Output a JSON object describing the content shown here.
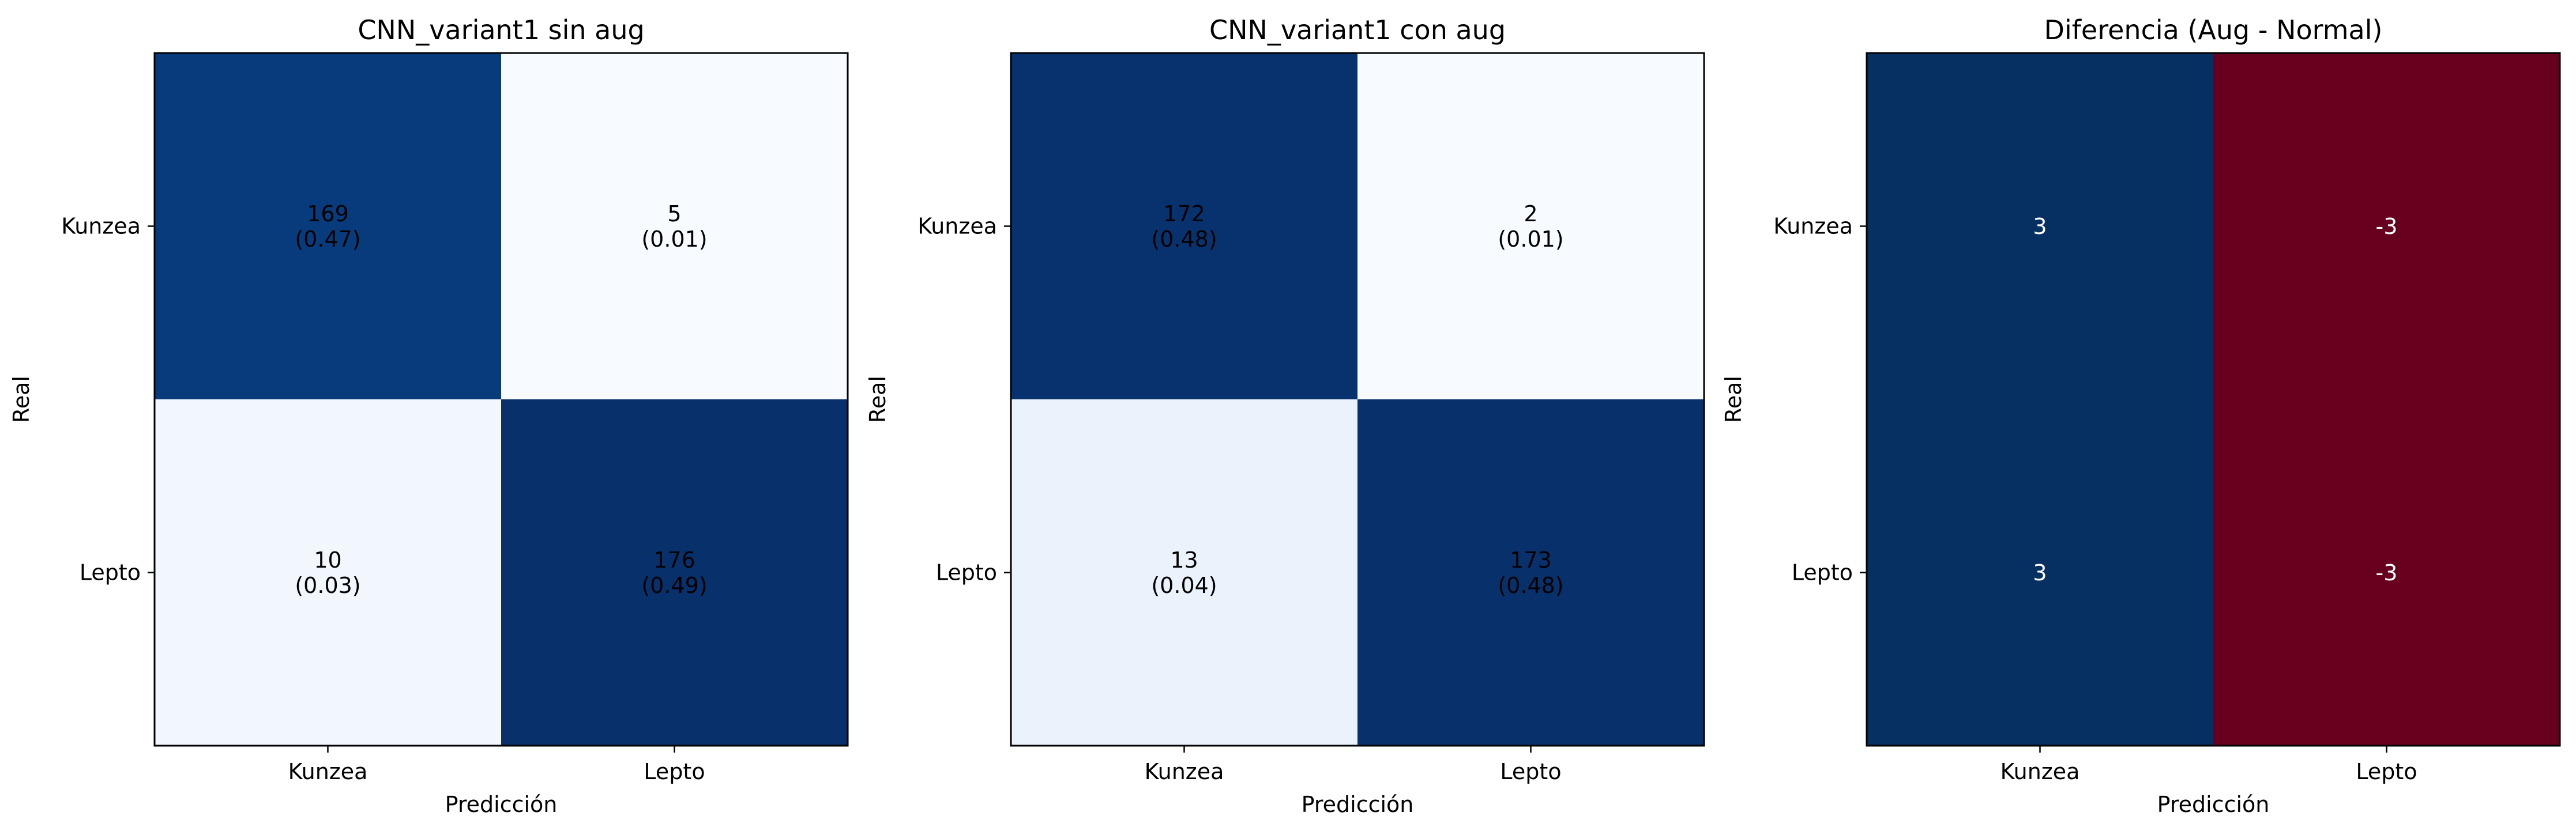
{
  "chart_data": [
    {
      "type": "heatmap",
      "title": "CNN_variant1 sin aug",
      "xlabel": "Predicción",
      "ylabel": "Real",
      "x_categories": [
        "Kunzea",
        "Lepto"
      ],
      "y_categories": [
        "Kunzea",
        "Lepto"
      ],
      "values": [
        [
          169,
          5
        ],
        [
          10,
          176
        ]
      ],
      "cell_labels": [
        [
          "169\n(0.47)",
          "5\n(0.01)"
        ],
        [
          "10\n(0.03)",
          "176\n(0.49)"
        ]
      ],
      "colormap": "Blues",
      "text_color": "#000000"
    },
    {
      "type": "heatmap",
      "title": "CNN_variant1 con aug",
      "xlabel": "Predicción",
      "ylabel": "Real",
      "x_categories": [
        "Kunzea",
        "Lepto"
      ],
      "y_categories": [
        "Kunzea",
        "Lepto"
      ],
      "values": [
        [
          172,
          2
        ],
        [
          13,
          173
        ]
      ],
      "cell_labels": [
        [
          "172\n(0.48)",
          "2\n(0.01)"
        ],
        [
          "13\n(0.04)",
          "173\n(0.48)"
        ]
      ],
      "colormap": "Blues",
      "text_color": "#000000"
    },
    {
      "type": "heatmap",
      "title": "Diferencia (Aug - Normal)",
      "xlabel": "Predicción",
      "ylabel": "Real",
      "x_categories": [
        "Kunzea",
        "Lepto"
      ],
      "y_categories": [
        "Kunzea",
        "Lepto"
      ],
      "values": [
        [
          3,
          -3
        ],
        [
          3,
          -3
        ]
      ],
      "cell_labels": [
        [
          "3",
          "-3"
        ],
        [
          "3",
          "-3"
        ]
      ],
      "colormap": "RdBu",
      "text_color": "#ffffff"
    }
  ]
}
